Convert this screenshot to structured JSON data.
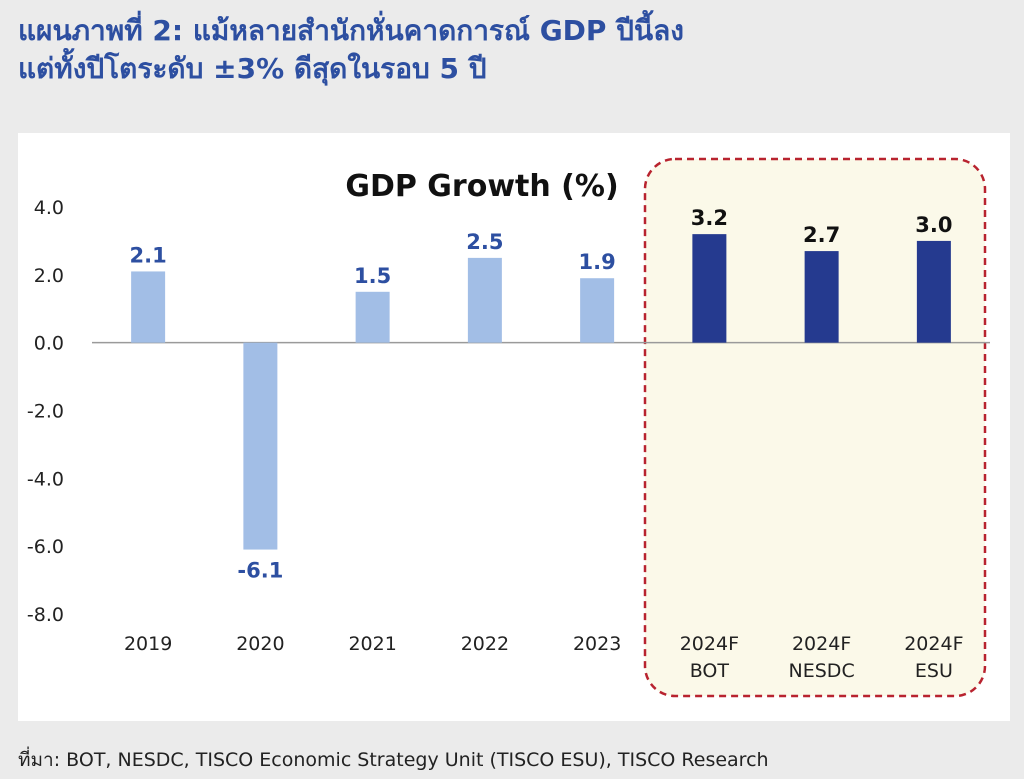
{
  "header": {
    "title_line1": "แผนภาพที่ 2: แม้หลายสำนักหั่นคาดการณ์ GDP ปีนี้ลง",
    "title_line2": "แต่ทั้งปีโตระดับ ±3%  ดีสุดในรอบ 5 ปี"
  },
  "source": "ที่มา: BOT, NESDC, TISCO Economic Strategy Unit (TISCO ESU), TISCO Research",
  "colors": {
    "title": "#2d4fa1",
    "historical_bar": "#a2bee6",
    "forecast_bar": "#253a8f",
    "highlight_fill": "#fbf9e9",
    "highlight_border": "#b8232f",
    "label_historical": "#2d4fa1",
    "label_forecast": "#111111"
  },
  "chart_data": {
    "type": "bar",
    "title": "GDP Growth (%)",
    "categories": [
      "2019",
      "2020",
      "2021",
      "2022",
      "2023",
      "2024F\nBOT",
      "2024F\nNESDC",
      "2024F\nESU"
    ],
    "values": [
      2.1,
      -6.1,
      1.5,
      2.5,
      1.9,
      3.2,
      2.7,
      3.0
    ],
    "value_labels": [
      "2.1",
      "-6.1",
      "1.5",
      "2.5",
      "1.9",
      "3.2",
      "2.7",
      "3.0"
    ],
    "bar_groups": [
      "historical",
      "historical",
      "historical",
      "historical",
      "historical",
      "forecast",
      "forecast",
      "forecast"
    ],
    "ylim": [
      -8.0,
      4.0
    ],
    "yticks": [
      "4.0",
      "2.0",
      "0.0",
      "-2.0",
      "-4.0",
      "-6.0",
      "-8.0"
    ],
    "ytick_values": [
      4,
      2,
      0,
      -2,
      -4,
      -6,
      -8
    ],
    "xlabel": "",
    "ylabel": "",
    "grid": false,
    "legend": "none",
    "highlight": "forecast"
  }
}
